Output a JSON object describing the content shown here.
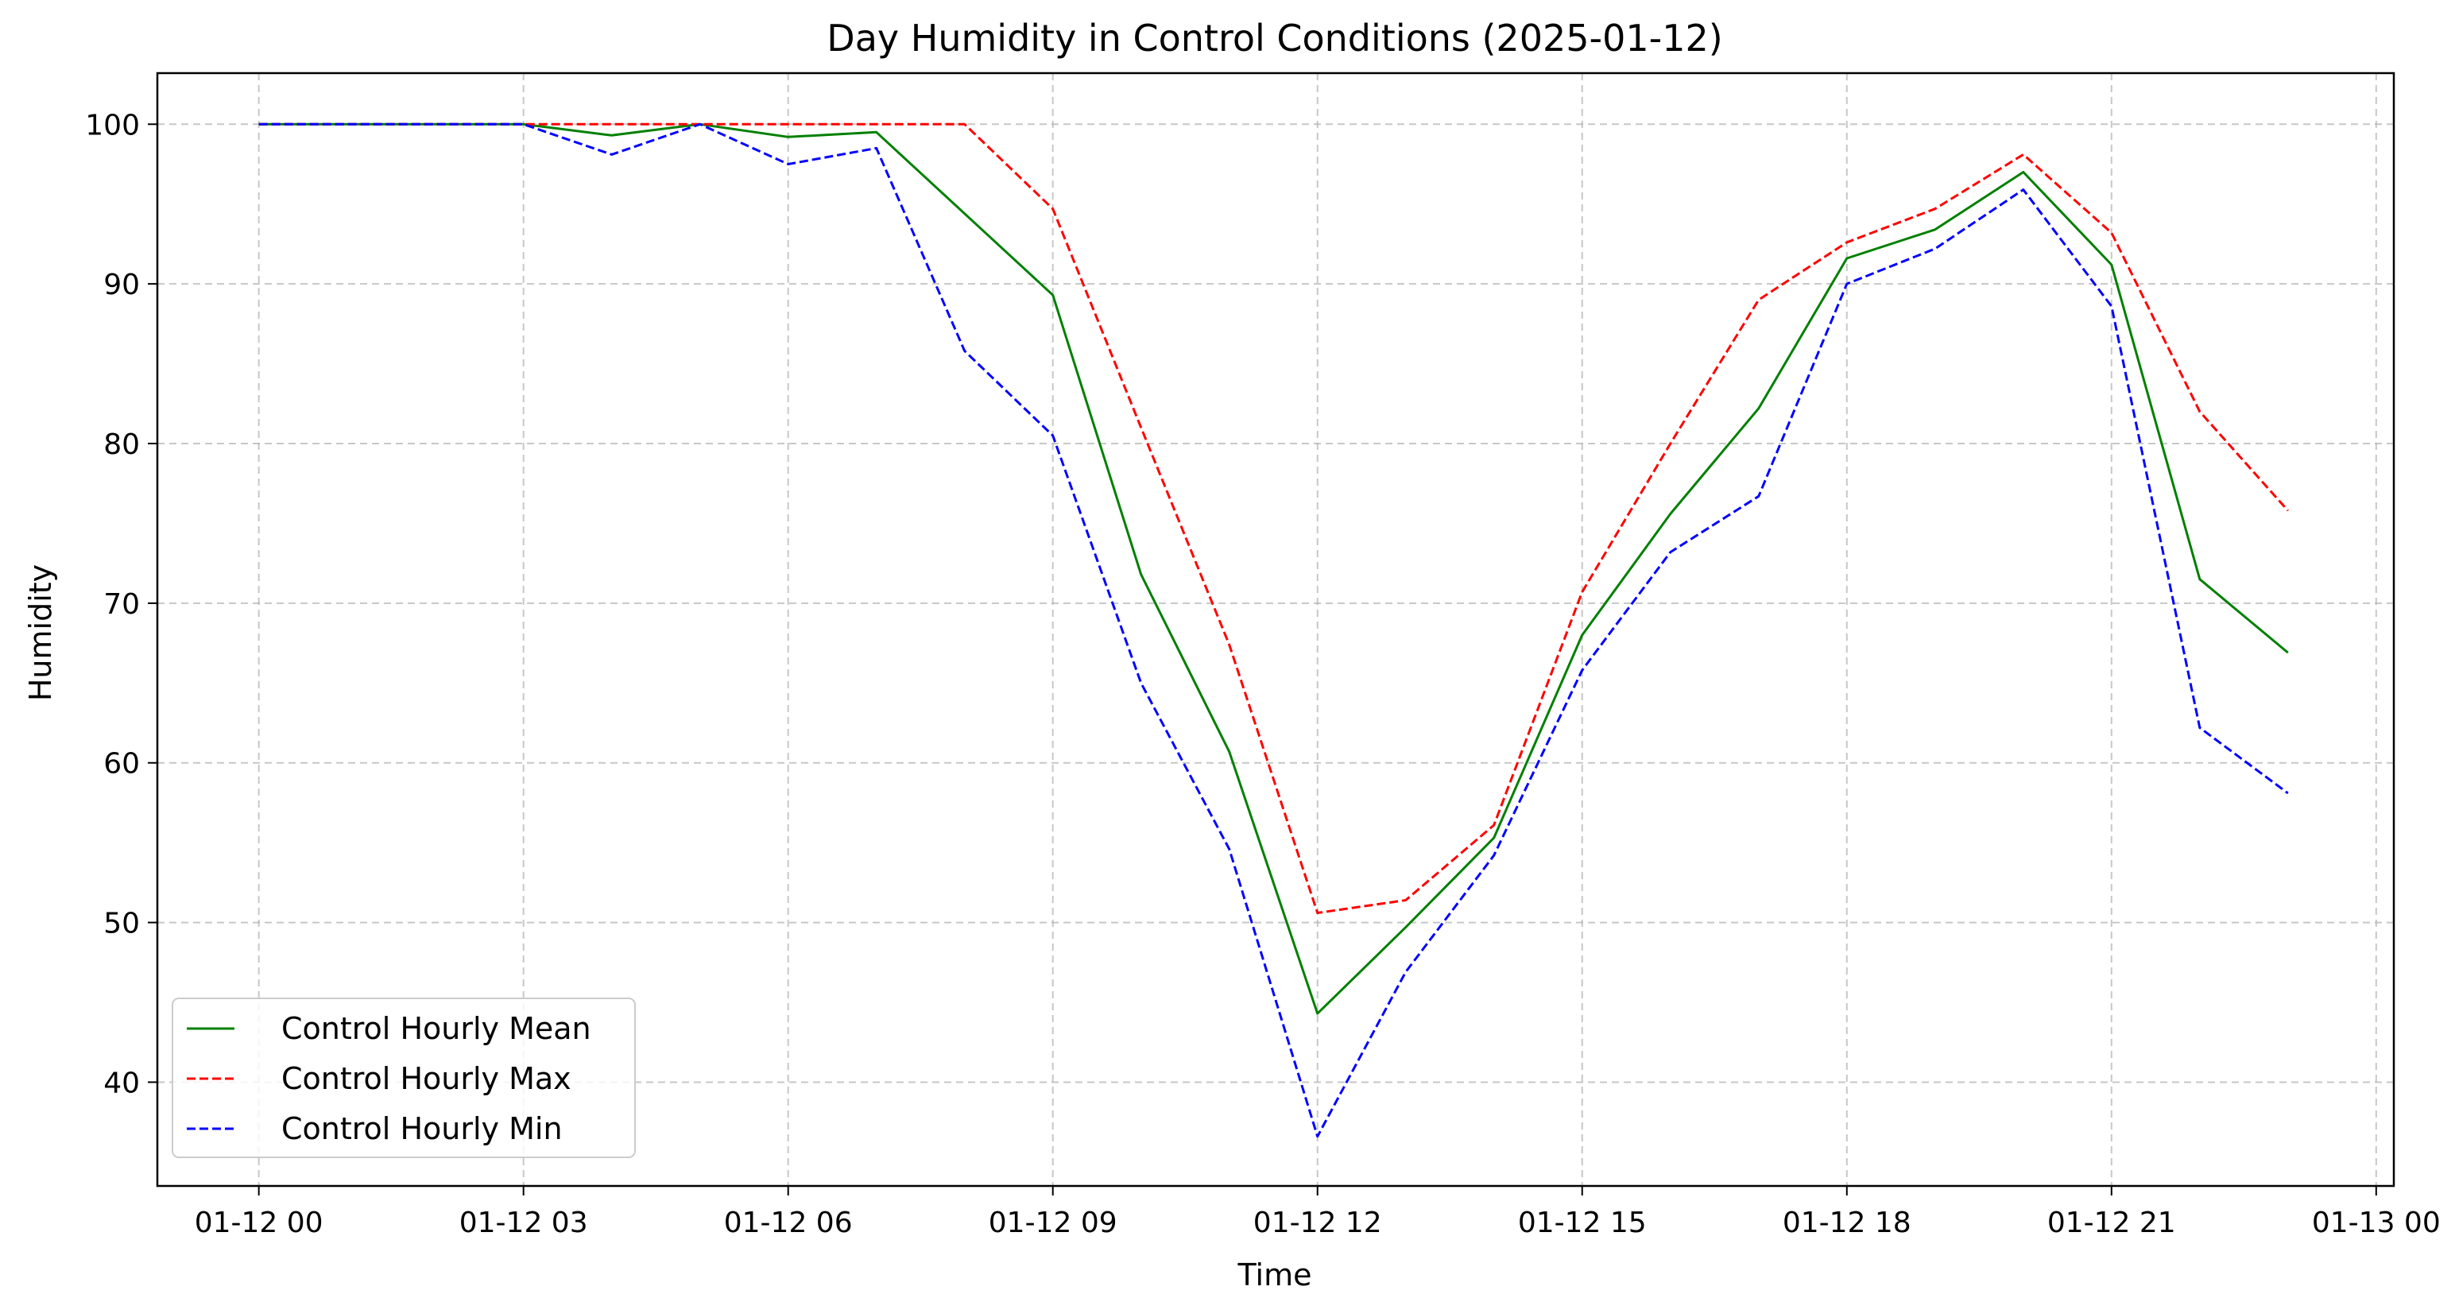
{
  "chart_data": {
    "type": "line",
    "title": "Day Humidity in Control Conditions (2025-01-12)",
    "xlabel": "Time",
    "ylabel": "Humidity",
    "x_tick_labels": [
      "01-12 00",
      "01-12 03",
      "01-12 06",
      "01-12 09",
      "01-12 12",
      "01-12 15",
      "01-12 18",
      "01-12 21",
      "01-13 00"
    ],
    "y_ticks": [
      40,
      50,
      60,
      70,
      80,
      90,
      100
    ],
    "xlim_hours": [
      -1.15,
      24.2
    ],
    "ylim": [
      33.5,
      103.2
    ],
    "grid": true,
    "legend_position": "lower-left",
    "x": [
      "00:00",
      "01:00",
      "02:00",
      "03:00",
      "04:00",
      "05:00",
      "06:00",
      "07:00",
      "08:00",
      "09:00",
      "10:00",
      "11:00",
      "12:00",
      "13:00",
      "14:00",
      "15:00",
      "16:00",
      "17:00",
      "18:00",
      "19:00",
      "20:00",
      "21:00",
      "22:00",
      "23:00"
    ],
    "series": [
      {
        "name": "Control Hourly Mean",
        "color": "#008000",
        "style": "solid",
        "values": [
          100,
          100,
          100,
          100,
          99.3,
          100,
          99.2,
          99.5,
          null,
          89.3,
          71.8,
          60.7,
          44.3,
          49.7,
          55.3,
          68.0,
          75.6,
          82.2,
          91.6,
          93.4,
          97.0,
          91.2,
          71.5,
          66.9
        ]
      },
      {
        "name": "Control Hourly Max",
        "color": "#ff0000",
        "style": "dashed",
        "values": [
          100,
          100,
          100,
          100,
          100,
          100,
          100,
          100,
          100,
          94.7,
          81.0,
          67.4,
          50.6,
          51.4,
          56.1,
          70.7,
          80.0,
          89.0,
          92.6,
          94.7,
          98.1,
          93.2,
          82.0,
          75.8
        ]
      },
      {
        "name": "Control Hourly Min",
        "color": "#0000ff",
        "style": "dashed",
        "values": [
          100,
          100,
          100,
          100,
          98.1,
          100,
          97.5,
          98.5,
          85.8,
          80.5,
          65.0,
          54.6,
          36.6,
          46.9,
          54.2,
          65.8,
          73.2,
          76.7,
          90.0,
          92.2,
          95.9,
          88.6,
          62.2,
          58.1
        ]
      }
    ]
  }
}
